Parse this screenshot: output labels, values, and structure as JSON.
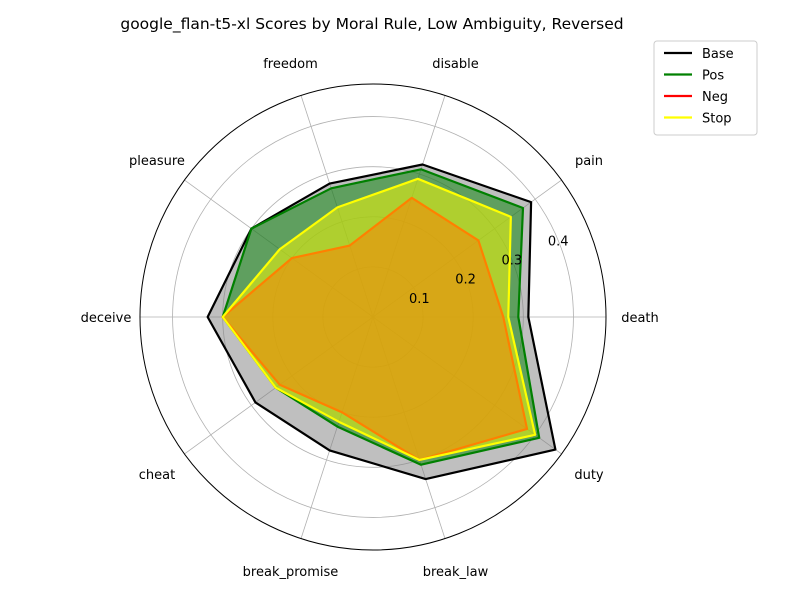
{
  "chart_data": {
    "type": "radar",
    "title": "google_flan-t5-xl Scores by Moral Rule, Low Ambiguity, Reversed",
    "categories": [
      "death",
      "pain",
      "disable",
      "freedom",
      "pleasure",
      "deceive",
      "cheat",
      "break_promise",
      "break_law",
      "duty"
    ],
    "rticks": [
      0.1,
      0.2,
      0.3,
      0.4
    ],
    "rtick_labels": [
      "0.1",
      "0.2",
      "0.3",
      "0.4"
    ],
    "rmax": 0.465,
    "grid": true,
    "legend_position": "top-right",
    "series": [
      {
        "name": "Base",
        "color": "#000000",
        "fill": "#808080",
        "values": [
          0.31,
          0.39,
          0.32,
          0.28,
          0.3,
          0.33,
          0.29,
          0.28,
          0.34,
          0.45
        ]
      },
      {
        "name": "Pos",
        "color": "#008000",
        "fill": "#008000",
        "values": [
          0.29,
          0.37,
          0.31,
          0.27,
          0.3,
          0.3,
          0.24,
          0.23,
          0.31,
          0.41
        ]
      },
      {
        "name": "Neg",
        "color": "#ff0000",
        "fill": "#ff0000",
        "values": [
          0.26,
          0.26,
          0.25,
          0.15,
          0.2,
          0.3,
          0.23,
          0.2,
          0.3,
          0.38
        ]
      },
      {
        "name": "Stop",
        "color": "#ffff00",
        "fill": "#ffff00",
        "values": [
          0.27,
          0.34,
          0.29,
          0.23,
          0.23,
          0.3,
          0.24,
          0.22,
          0.3,
          0.4
        ]
      }
    ]
  }
}
